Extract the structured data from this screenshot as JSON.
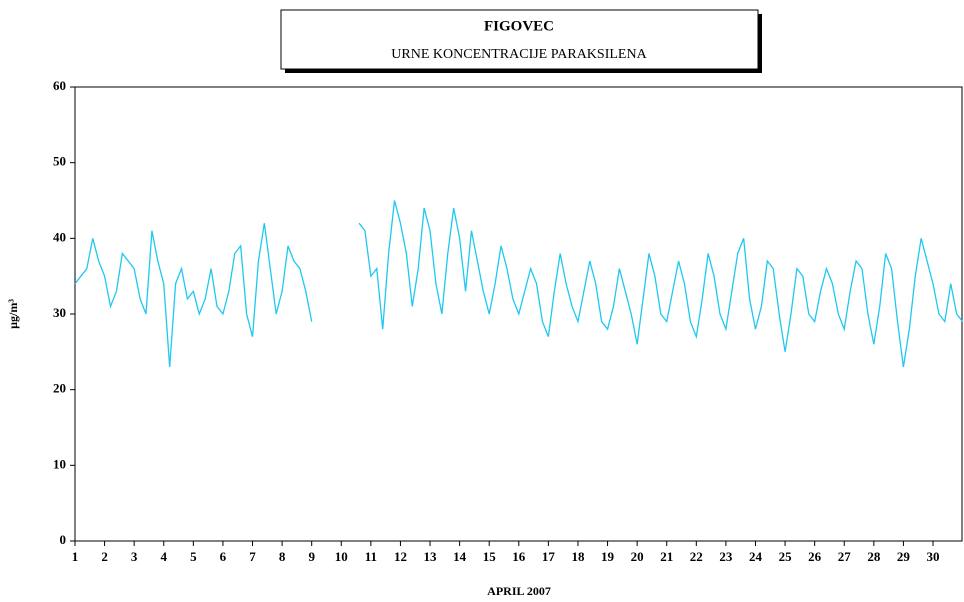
{
  "chart_data": {
    "type": "line",
    "title": "FIGOVEC",
    "subtitle": "URNE KONCENTRACIJE PARAKSILENA",
    "x_label": "APRIL 2007",
    "y_label": "µg/m³",
    "xlim": [
      1,
      31
    ],
    "xticks": [
      1,
      2,
      3,
      4,
      5,
      6,
      7,
      8,
      9,
      10,
      11,
      12,
      13,
      14,
      15,
      16,
      17,
      18,
      19,
      20,
      21,
      22,
      23,
      24,
      25,
      26,
      27,
      28,
      29,
      30
    ],
    "ylim": [
      0,
      60
    ],
    "yticks": [
      0,
      10,
      20,
      30,
      40,
      50,
      60
    ],
    "grid": false,
    "series": [
      {
        "color": "#1ec8f0",
        "x": [
          1,
          1.2,
          1.4,
          1.6,
          1.8,
          2,
          2.2,
          2.4,
          2.6,
          2.8,
          3,
          3.2,
          3.4,
          3.6,
          3.8,
          4,
          4.2,
          4.4,
          4.6,
          4.8,
          5,
          5.2,
          5.4,
          5.6,
          5.8,
          6,
          6.2,
          6.4,
          6.6,
          6.8,
          7,
          7.2,
          7.4,
          7.6,
          7.8,
          8,
          8.2,
          8.4,
          8.6,
          8.8,
          9,
          9.2,
          9.4,
          9.6,
          9.8,
          10,
          10.2,
          10.4,
          10.6,
          10.8,
          11,
          11.2,
          11.4,
          11.6,
          11.8,
          12,
          12.2,
          12.4,
          12.6,
          12.8,
          13,
          13.2,
          13.4,
          13.6,
          13.8,
          14,
          14.2,
          14.4,
          14.6,
          14.8,
          15,
          15.2,
          15.4,
          15.6,
          15.8,
          16,
          16.2,
          16.4,
          16.6,
          16.8,
          17,
          17.2,
          17.4,
          17.6,
          17.8,
          18,
          18.2,
          18.4,
          18.6,
          18.8,
          19,
          19.2,
          19.4,
          19.6,
          19.8,
          20,
          20.2,
          20.4,
          20.6,
          20.8,
          21,
          21.2,
          21.4,
          21.6,
          21.8,
          22,
          22.2,
          22.4,
          22.6,
          22.8,
          23,
          23.2,
          23.4,
          23.6,
          23.8,
          24,
          24.2,
          24.4,
          24.6,
          24.8,
          25,
          25.2,
          25.4,
          25.6,
          25.8,
          26,
          26.2,
          26.4,
          26.6,
          26.8,
          27,
          27.2,
          27.4,
          27.6,
          27.8,
          28,
          28.2,
          28.4,
          28.6,
          28.8,
          29,
          29.2,
          29.4,
          29.6,
          29.8,
          30,
          30.2,
          30.4,
          30.6,
          30.8,
          31
        ],
        "values": [
          34,
          35,
          36,
          40,
          37,
          35,
          31,
          33,
          38,
          37,
          36,
          32,
          30,
          41,
          37,
          34,
          23,
          34,
          36,
          32,
          33,
          30,
          32,
          36,
          31,
          30,
          33,
          38,
          39,
          30,
          27,
          37,
          42,
          36,
          30,
          33,
          39,
          37,
          36,
          33,
          29,
          null,
          null,
          null,
          null,
          null,
          null,
          null,
          42,
          41,
          35,
          36,
          28,
          38,
          45,
          42,
          38,
          31,
          36,
          44,
          41,
          34,
          30,
          38,
          44,
          40,
          33,
          41,
          37,
          33,
          30,
          34,
          39,
          36,
          32,
          30,
          33,
          36,
          34,
          29,
          27,
          33,
          38,
          34,
          31,
          29,
          33,
          37,
          34,
          29,
          28,
          31,
          36,
          33,
          30,
          26,
          32,
          38,
          35,
          30,
          29,
          33,
          37,
          34,
          29,
          27,
          32,
          38,
          35,
          30,
          28,
          33,
          38,
          40,
          32,
          28,
          31,
          37,
          36,
          30,
          25,
          30,
          36,
          35,
          30,
          29,
          33,
          36,
          34,
          30,
          28,
          33,
          37,
          36,
          30,
          26,
          31,
          38,
          36,
          29,
          23,
          28,
          35,
          40,
          37,
          34,
          30,
          29,
          34,
          30,
          29
        ]
      }
    ]
  }
}
